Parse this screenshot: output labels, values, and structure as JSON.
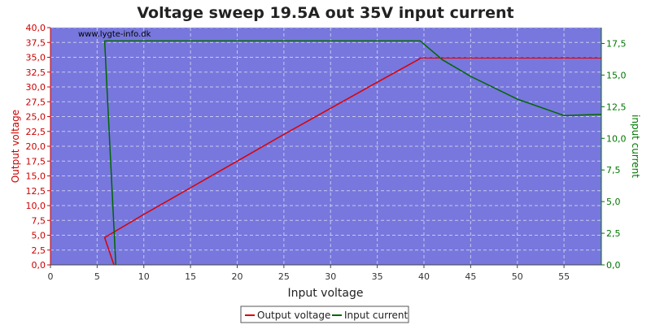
{
  "chart_data": {
    "type": "line",
    "title": "Voltage sweep 19.5A out 35V input current",
    "watermark": "www.lygte-info.dk",
    "xlabel": "Input voltage",
    "ylabel_left": "Output voltage",
    "ylabel_right": "input current",
    "xlim": [
      0,
      59
    ],
    "ylim_left": [
      0,
      40
    ],
    "ylim_right": [
      0,
      18.75
    ],
    "x_ticks": [
      "0",
      "5",
      "10",
      "15",
      "20",
      "25",
      "30",
      "35",
      "40",
      "45",
      "50",
      "55"
    ],
    "y_left_ticks": [
      "0,0",
      "2,5",
      "5,0",
      "7,5",
      "10,0",
      "12,5",
      "15,0",
      "17,5",
      "20,0",
      "22,5",
      "25,0",
      "27,5",
      "30,0",
      "32,5",
      "35,0",
      "37,5",
      "40,0"
    ],
    "y_right_ticks": [
      "0,0",
      "2,5",
      "5,0",
      "7,5",
      "10,0",
      "12,5",
      "15,0",
      "17,5"
    ],
    "grid": true,
    "legend_position": "bottom-center",
    "colors": {
      "plot_bg": "#7777dd",
      "output_voltage": "#dd0000",
      "input_current": "#006600",
      "left_axis": "#cc0000",
      "right_axis": "#007700"
    },
    "series": [
      {
        "name": "Output voltage",
        "axis": "left",
        "x": [
          6.8,
          5.8,
          10,
          15,
          20,
          25,
          30,
          35,
          39.5,
          39.6,
          45,
          50,
          55,
          59
        ],
        "y": [
          0.0,
          4.6,
          8.5,
          13.0,
          17.5,
          22.0,
          26.4,
          30.8,
          34.7,
          34.9,
          34.9,
          34.9,
          34.9,
          34.9
        ]
      },
      {
        "name": "Input current",
        "axis": "right",
        "x": [
          7.0,
          5.8,
          6.0,
          10,
          20,
          30,
          35,
          39.6,
          42,
          45,
          50,
          55,
          59
        ],
        "y": [
          0.0,
          17.7,
          17.7,
          17.7,
          17.7,
          17.7,
          17.7,
          17.7,
          16.2,
          14.9,
          13.1,
          11.8,
          11.9
        ]
      }
    ]
  }
}
